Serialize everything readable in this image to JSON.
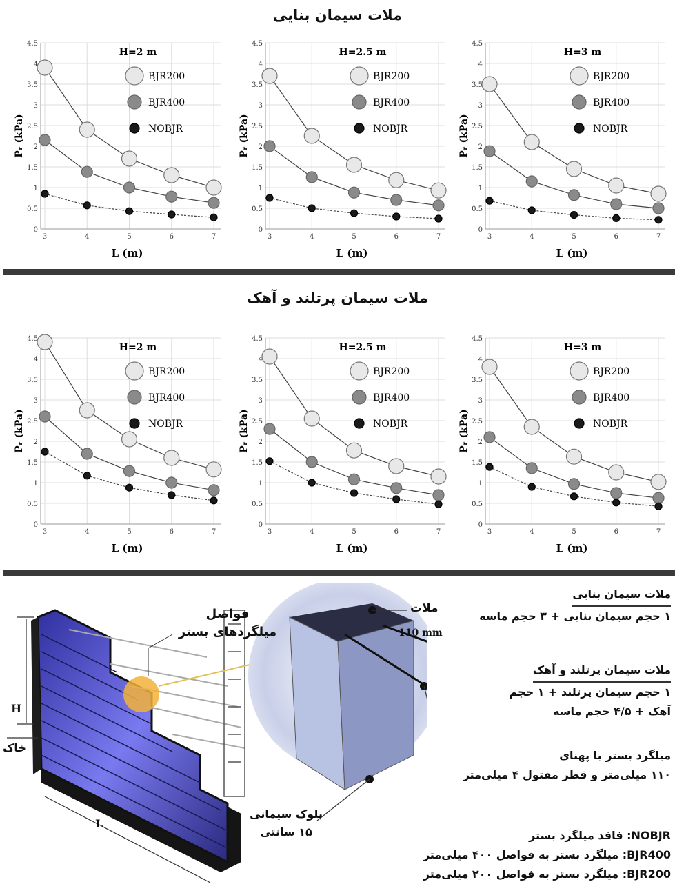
{
  "sections": [
    {
      "title": "ملات سیمان بنایی"
    },
    {
      "title": "ملات سیمان پرتلند و آهک"
    }
  ],
  "axis": {
    "ylabel": "Pᵣ (kPa)",
    "xlabel": "L (m)"
  },
  "legend": [
    "BJR200",
    "BJR400",
    "NOBJR"
  ],
  "colors": {
    "BJR200": "#e8e8e8",
    "BJR400": "#8a8a8a",
    "NOBJR": "#1a1a1a"
  },
  "chart_data": [
    {
      "type": "scatter",
      "title": "H=2 m",
      "xlabel": "L (m)",
      "ylabel": "Pᵣ (kPa)",
      "ylim": [
        0,
        4.5
      ],
      "x": [
        3,
        4,
        5,
        6,
        7
      ],
      "xticks": [
        "3",
        "4",
        "5",
        "6",
        "7"
      ],
      "yticks": [
        "0",
        "0.5",
        "1",
        "1.5",
        "2",
        "2.5",
        "3",
        "3.5",
        "4",
        "4.5"
      ],
      "series": [
        {
          "name": "BJR200",
          "values": [
            3.9,
            2.4,
            1.7,
            1.3,
            1.0
          ]
        },
        {
          "name": "BJR400",
          "values": [
            2.15,
            1.38,
            1.0,
            0.78,
            0.63
          ]
        },
        {
          "name": "NOBJR",
          "values": [
            0.85,
            0.57,
            0.43,
            0.35,
            0.28
          ]
        }
      ]
    },
    {
      "type": "scatter",
      "title": "H=2.5 m",
      "xlabel": "L (m)",
      "ylabel": "Pᵣ (kPa)",
      "ylim": [
        0,
        4.5
      ],
      "x": [
        3,
        4,
        5,
        6,
        7
      ],
      "xticks": [
        "3",
        "4",
        "5",
        "6",
        "7"
      ],
      "yticks": [
        "0",
        "0.5",
        "1",
        "1.5",
        "2",
        "2.5",
        "3",
        "3.5",
        "4",
        "4.5"
      ],
      "series": [
        {
          "name": "BJR200",
          "values": [
            3.7,
            2.25,
            1.55,
            1.18,
            0.93
          ]
        },
        {
          "name": "BJR400",
          "values": [
            2.0,
            1.25,
            0.88,
            0.7,
            0.57
          ]
        },
        {
          "name": "NOBJR",
          "values": [
            0.75,
            0.5,
            0.38,
            0.3,
            0.25
          ]
        }
      ]
    },
    {
      "type": "scatter",
      "title": "H=3 m",
      "xlabel": "L (m)",
      "ylabel": "Pᵣ (kPa)",
      "ylim": [
        0,
        4.5
      ],
      "x": [
        3,
        4,
        5,
        6,
        7
      ],
      "xticks": [
        "3",
        "4",
        "5",
        "6",
        "7"
      ],
      "yticks": [
        "0",
        "0.5",
        "1",
        "1.5",
        "2",
        "2.5",
        "3",
        "3.5",
        "4",
        "4.5"
      ],
      "series": [
        {
          "name": "BJR200",
          "values": [
            3.5,
            2.1,
            1.45,
            1.05,
            0.85
          ]
        },
        {
          "name": "BJR400",
          "values": [
            1.88,
            1.15,
            0.82,
            0.6,
            0.5
          ]
        },
        {
          "name": "NOBJR",
          "values": [
            0.68,
            0.45,
            0.34,
            0.26,
            0.22
          ]
        }
      ]
    },
    {
      "type": "scatter",
      "title": "H=2 m",
      "xlabel": "L (m)",
      "ylabel": "Pᵣ (kPa)",
      "ylim": [
        0,
        4.5
      ],
      "x": [
        3,
        4,
        5,
        6,
        7
      ],
      "xticks": [
        "3",
        "4",
        "5",
        "6",
        "7"
      ],
      "yticks": [
        "0",
        "0.5",
        "1",
        "1.5",
        "2",
        "2.5",
        "3",
        "3.5",
        "4",
        "4.5"
      ],
      "series": [
        {
          "name": "BJR200",
          "values": [
            4.4,
            2.75,
            2.05,
            1.6,
            1.32
          ]
        },
        {
          "name": "BJR400",
          "values": [
            2.6,
            1.7,
            1.28,
            1.0,
            0.82
          ]
        },
        {
          "name": "NOBJR",
          "values": [
            1.75,
            1.17,
            0.88,
            0.7,
            0.57
          ]
        }
      ]
    },
    {
      "type": "scatter",
      "title": "H=2.5 m",
      "xlabel": "L (m)",
      "ylabel": "Pᵣ (kPa)",
      "ylim": [
        0,
        4.5
      ],
      "x": [
        3,
        4,
        5,
        6,
        7
      ],
      "xticks": [
        "3",
        "4",
        "5",
        "6",
        "7"
      ],
      "yticks": [
        "0",
        "0.5",
        "1",
        "1.5",
        "2",
        "2.5",
        "3",
        "3.5",
        "4",
        "4.5"
      ],
      "series": [
        {
          "name": "BJR200",
          "values": [
            4.05,
            2.55,
            1.78,
            1.4,
            1.15
          ]
        },
        {
          "name": "BJR400",
          "values": [
            2.3,
            1.5,
            1.08,
            0.87,
            0.7
          ]
        },
        {
          "name": "NOBJR",
          "values": [
            1.52,
            1.0,
            0.75,
            0.6,
            0.48
          ]
        }
      ]
    },
    {
      "type": "scatter",
      "title": "H=3 m",
      "xlabel": "L (m)",
      "ylabel": "Pᵣ (kPa)",
      "ylim": [
        0,
        4.5
      ],
      "x": [
        3,
        4,
        5,
        6,
        7
      ],
      "xticks": [
        "3",
        "4",
        "5",
        "6",
        "7"
      ],
      "yticks": [
        "0",
        "0.5",
        "1",
        "1.5",
        "2",
        "2.5",
        "3",
        "3.5",
        "4",
        "4.5"
      ],
      "series": [
        {
          "name": "BJR200",
          "values": [
            3.8,
            2.35,
            1.63,
            1.25,
            1.02
          ]
        },
        {
          "name": "BJR400",
          "values": [
            2.1,
            1.35,
            0.97,
            0.75,
            0.63
          ]
        },
        {
          "name": "NOBJR",
          "values": [
            1.38,
            0.9,
            0.67,
            0.52,
            0.43
          ]
        }
      ]
    }
  ],
  "diagram": {
    "spacing_label_line1": "فواصل",
    "spacing_label_line2": "میلگردهای بستر",
    "mortar_label": "ملات",
    "dim_label": "110 mm",
    "H_label": "H",
    "soil_label": "خاک",
    "L_label": "L",
    "block_label_line1": "بلوک سیمانی",
    "block_label_line2": "۱۵ سانتی"
  },
  "notes": {
    "masonry_head": "ملات سیمان بنایی",
    "masonry_desc": "۱ حجم سیمان بنایی + ۳ حجم ماسه",
    "portland_head": "ملات سیمان پرتلند و آهک",
    "portland_desc1": "۱ حجم سیمان پرتلند + ۱ حجم",
    "portland_desc2": "آهک + ۴/۵ حجم ماسه",
    "rebar_line1": "میلگرد بستر با پهنای",
    "rebar_line2": "۱۱۰ میلی‌متر و قطر مفتول ۴ میلی‌متر",
    "nobjr": "NOBJR: فاقد میلگرد بستر",
    "bjr400": "BJR400: میلگرد بستر به فواصل ۴۰۰ میلی‌متر",
    "bjr200": "BJR200: میلگرد بستر به فواصل ۲۰۰ میلی‌متر"
  }
}
